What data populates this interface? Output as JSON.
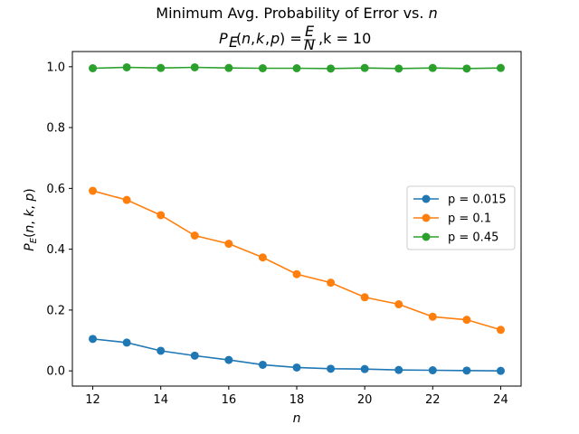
{
  "chart_data": {
    "type": "line",
    "title": "Minimum Avg. Probability of Error vs. n",
    "subtitle": "P_E(n,k,p) = E/N, k = 10",
    "xlabel": "n",
    "ylabel": "P_E(n,k,p)",
    "xlim": [
      11.4,
      24.6
    ],
    "ylim": [
      -0.05,
      1.05
    ],
    "xticks": [
      12,
      14,
      16,
      18,
      20,
      22,
      24
    ],
    "yticks": [
      0.0,
      0.2,
      0.4,
      0.6,
      0.8,
      1.0
    ],
    "grid": false,
    "legend_position": "center-right",
    "x": [
      12,
      13,
      14,
      15,
      16,
      17,
      18,
      19,
      20,
      21,
      22,
      23,
      24
    ],
    "series": [
      {
        "name": "p = 0.015",
        "color": "#1f77b4",
        "values": [
          0.105,
          0.093,
          0.066,
          0.05,
          0.036,
          0.02,
          0.011,
          0.007,
          0.006,
          0.003,
          0.002,
          0.001,
          0.0
        ]
      },
      {
        "name": "p = 0.1",
        "color": "#ff7f0e",
        "values": [
          0.592,
          0.562,
          0.512,
          0.445,
          0.418,
          0.373,
          0.318,
          0.29,
          0.242,
          0.219,
          0.178,
          0.168,
          0.135
        ]
      },
      {
        "name": "p = 0.45",
        "color": "#2ca02c",
        "values": [
          0.995,
          0.998,
          0.996,
          0.998,
          0.996,
          0.995,
          0.995,
          0.994,
          0.996,
          0.994,
          0.996,
          0.994,
          0.996
        ]
      }
    ]
  }
}
